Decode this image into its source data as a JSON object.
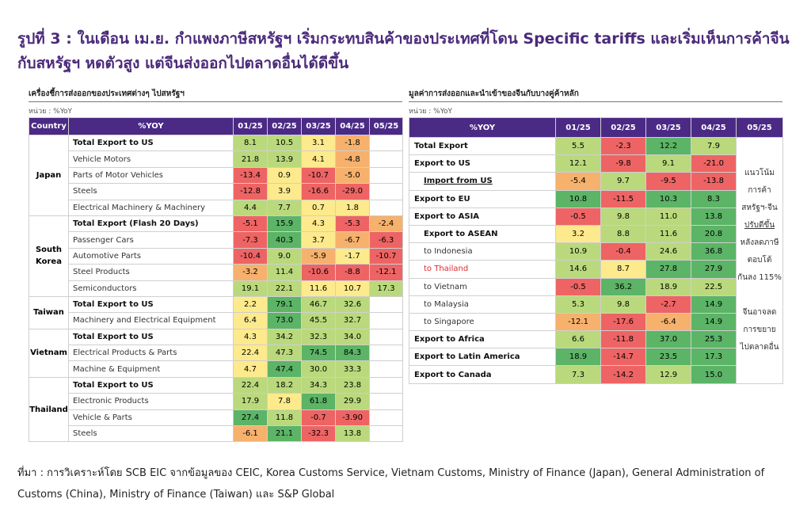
{
  "title": "รูปที่ 3 : ในเดือน เม.ย. กำแพงภาษีสหรัฐฯ เริ่มกระทบสินค้าของประเทศที่โดน Specific tariffs และเริ่มเห็นการค้าจีนกับสหรัฐฯ หดตัวสูง แต่จีนส่งออกไปตลาดอื่นได้ดีขึ้น",
  "palette": {
    "red": "#ee6464",
    "orange": "#f6b16d",
    "yellow": "#fdea8d",
    "lightgreen": "#bad97c",
    "green": "#5cb466",
    "header": "#4b2a85"
  },
  "chart_data": [
    {
      "type": "table",
      "title": "เครื่องชี้การส่งออกของประเทศต่างๆ ไปสหรัฐฯ",
      "unit": "หน่วย : %YoY",
      "columns": [
        "Country",
        "%YOY",
        "01/25",
        "02/25",
        "03/25",
        "04/25",
        "05/25"
      ],
      "groups": [
        {
          "country": "Japan",
          "rows": [
            {
              "item": "Total Export to US",
              "bold": true,
              "values": [
                "8.1",
                "10.5",
                "3.1",
                "-1.8",
                ""
              ],
              "colors": [
                "lightgreen",
                "lightgreen",
                "yellow",
                "orange",
                ""
              ]
            },
            {
              "item": "Vehicle Motors",
              "bold": false,
              "values": [
                "21.8",
                "13.9",
                "4.1",
                "-4.8",
                ""
              ],
              "colors": [
                "lightgreen",
                "lightgreen",
                "yellow",
                "orange",
                ""
              ]
            },
            {
              "item": "Parts of Motor Vehicles",
              "bold": false,
              "values": [
                "-13.4",
                "0.9",
                "-10.7",
                "-5.0",
                ""
              ],
              "colors": [
                "red",
                "yellow",
                "red",
                "orange",
                ""
              ]
            },
            {
              "item": "Steels",
              "bold": false,
              "values": [
                "-12.8",
                "3.9",
                "-16.6",
                "-29.0",
                ""
              ],
              "colors": [
                "red",
                "yellow",
                "red",
                "red",
                ""
              ]
            },
            {
              "item": "Electrical Machinery & Machinery",
              "bold": false,
              "values": [
                "4.4",
                "7.7",
                "0.7",
                "1.8",
                ""
              ],
              "colors": [
                "lightgreen",
                "lightgreen",
                "yellow",
                "yellow",
                ""
              ]
            }
          ]
        },
        {
          "country": "South Korea",
          "rows": [
            {
              "item": "Total Export (Flash 20 Days)",
              "bold": true,
              "values": [
                "-5.1",
                "15.9",
                "4.3",
                "-5.3",
                "-2.4"
              ],
              "colors": [
                "red",
                "green",
                "yellow",
                "red",
                "orange"
              ]
            },
            {
              "item": "Passenger Cars",
              "bold": false,
              "values": [
                "-7.3",
                "40.3",
                "3.7",
                "-6.7",
                "-6.3"
              ],
              "colors": [
                "red",
                "green",
                "yellow",
                "orange",
                "red"
              ]
            },
            {
              "item": "Automotive Parts",
              "bold": false,
              "values": [
                "-10.4",
                "9.0",
                "-5.9",
                "-1.7",
                "-10.7"
              ],
              "colors": [
                "red",
                "lightgreen",
                "orange",
                "yellow",
                "red"
              ]
            },
            {
              "item": "Steel Products",
              "bold": false,
              "values": [
                "-3.2",
                "11.4",
                "-10.6",
                "-8.8",
                "-12.1"
              ],
              "colors": [
                "orange",
                "lightgreen",
                "red",
                "red",
                "red"
              ]
            },
            {
              "item": "Semiconductors",
              "bold": false,
              "values": [
                "19.1",
                "22.1",
                "11.6",
                "10.7",
                "17.3"
              ],
              "colors": [
                "lightgreen",
                "lightgreen",
                "yellow",
                "yellow",
                "lightgreen"
              ]
            }
          ]
        },
        {
          "country": "Taiwan",
          "rows": [
            {
              "item": "Total Export to US",
              "bold": true,
              "values": [
                "2.2",
                "79.1",
                "46.7",
                "32.6",
                ""
              ],
              "colors": [
                "yellow",
                "green",
                "lightgreen",
                "lightgreen",
                ""
              ]
            },
            {
              "item": "Machinery and Electrical Equipment",
              "bold": false,
              "values": [
                "6.4",
                "73.0",
                "45.5",
                "32.7",
                ""
              ],
              "colors": [
                "yellow",
                "green",
                "lightgreen",
                "lightgreen",
                ""
              ]
            }
          ]
        },
        {
          "country": "Vietnam",
          "rows": [
            {
              "item": "Total Export to US",
              "bold": true,
              "values": [
                "4.3",
                "34.2",
                "32.3",
                "34.0",
                ""
              ],
              "colors": [
                "yellow",
                "lightgreen",
                "lightgreen",
                "lightgreen",
                ""
              ]
            },
            {
              "item": "Electrical Products & Parts",
              "bold": false,
              "values": [
                "22.4",
                "47.3",
                "74.5",
                "84.3",
                ""
              ],
              "colors": [
                "yellow",
                "lightgreen",
                "green",
                "green",
                ""
              ]
            },
            {
              "item": "Machine & Equipment",
              "bold": false,
              "values": [
                "4.7",
                "47.4",
                "30.0",
                "33.3",
                ""
              ],
              "colors": [
                "yellow",
                "green",
                "lightgreen",
                "lightgreen",
                ""
              ]
            }
          ]
        },
        {
          "country": "Thailand",
          "rows": [
            {
              "item": "Total Export to US",
              "bold": true,
              "values": [
                "22.4",
                "18.2",
                "34.3",
                "23.8",
                ""
              ],
              "colors": [
                "lightgreen",
                "lightgreen",
                "lightgreen",
                "lightgreen",
                ""
              ]
            },
            {
              "item": "Electronic Products",
              "bold": false,
              "values": [
                "17.9",
                "7.8",
                "61.8",
                "29.9",
                ""
              ],
              "colors": [
                "lightgreen",
                "yellow",
                "green",
                "lightgreen",
                ""
              ]
            },
            {
              "item": "Vehicle & Parts",
              "bold": false,
              "values": [
                "27.4",
                "11.8",
                "-0.7",
                "-3.90",
                ""
              ],
              "colors": [
                "green",
                "lightgreen",
                "red",
                "red",
                ""
              ]
            },
            {
              "item": "Steels",
              "bold": false,
              "values": [
                "-6.1",
                "21.1",
                "-32.3",
                "13.8",
                ""
              ],
              "colors": [
                "orange",
                "green",
                "red",
                "lightgreen",
                ""
              ]
            }
          ]
        }
      ]
    },
    {
      "type": "table",
      "title": "มูลค่าการส่งออกและนำเข้าของจีนกับบางคู่ค้าหลัก",
      "unit": "หน่วย : %YoY",
      "columns": [
        "%YOY",
        "01/25",
        "02/25",
        "03/25",
        "04/25",
        "05/25"
      ],
      "note_lines": [
        "แนวโน้ม",
        "การค้า",
        "สหรัฐฯ-จีน",
        "ปรับดีขึ้น",
        "หลังลดภาษี",
        "ตอบโต้",
        "กันลง 115%",
        "",
        "จีนอาจลด",
        "การขยาย",
        "ไปตลาดอื่น"
      ],
      "rows": [
        {
          "item": "Total Export",
          "style": "bold",
          "values": [
            "5.5",
            "-2.3",
            "12.2",
            "7.9"
          ],
          "colors": [
            "lightgreen",
            "red",
            "green",
            "lightgreen"
          ]
        },
        {
          "item": "Export to US",
          "style": "bold",
          "values": [
            "12.1",
            "-9.8",
            "9.1",
            "-21.0"
          ],
          "colors": [
            "lightgreen",
            "red",
            "lightgreen",
            "red"
          ]
        },
        {
          "item": "Import from US",
          "style": "bold-indent-underline",
          "values": [
            "-5.4",
            "9.7",
            "-9.5",
            "-13.8"
          ],
          "colors": [
            "orange",
            "lightgreen",
            "red",
            "red"
          ]
        },
        {
          "item": "Export to EU",
          "style": "bold",
          "values": [
            "10.8",
            "-11.5",
            "10.3",
            "8.3"
          ],
          "colors": [
            "green",
            "red",
            "green",
            "green"
          ]
        },
        {
          "item": "Export to ASIA",
          "style": "bold",
          "values": [
            "-0.5",
            "9.8",
            "11.0",
            "13.8"
          ],
          "colors": [
            "red",
            "lightgreen",
            "lightgreen",
            "green"
          ]
        },
        {
          "item": "Export to ASEAN",
          "style": "bold-indent",
          "values": [
            "3.2",
            "8.8",
            "11.6",
            "20.8"
          ],
          "colors": [
            "yellow",
            "lightgreen",
            "lightgreen",
            "green"
          ]
        },
        {
          "item": "to Indonesia",
          "style": "indent",
          "values": [
            "10.9",
            "-0.4",
            "24.6",
            "36.8"
          ],
          "colors": [
            "lightgreen",
            "red",
            "lightgreen",
            "green"
          ]
        },
        {
          "item": "to Thailand",
          "style": "indent-red",
          "values": [
            "14.6",
            "8.7",
            "27.8",
            "27.9"
          ],
          "colors": [
            "lightgreen",
            "yellow",
            "green",
            "green"
          ]
        },
        {
          "item": "to Vietnam",
          "style": "indent",
          "values": [
            "-0.5",
            "36.2",
            "18.9",
            "22.5"
          ],
          "colors": [
            "red",
            "green",
            "lightgreen",
            "lightgreen"
          ]
        },
        {
          "item": "to Malaysia",
          "style": "indent",
          "values": [
            "5.3",
            "9.8",
            "-2.7",
            "14.9"
          ],
          "colors": [
            "lightgreen",
            "lightgreen",
            "red",
            "green"
          ]
        },
        {
          "item": "to Singapore",
          "style": "indent",
          "values": [
            "-12.1",
            "-17.6",
            "-6.4",
            "14.9"
          ],
          "colors": [
            "orange",
            "red",
            "orange",
            "green"
          ]
        },
        {
          "item": "Export to Africa",
          "style": "bold",
          "values": [
            "6.6",
            "-11.8",
            "37.0",
            "25.3"
          ],
          "colors": [
            "lightgreen",
            "red",
            "green",
            "green"
          ]
        },
        {
          "item": "Export to Latin America",
          "style": "bold",
          "values": [
            "18.9",
            "-14.7",
            "23.5",
            "17.3"
          ],
          "colors": [
            "green",
            "red",
            "green",
            "green"
          ]
        },
        {
          "item": "Export to Canada",
          "style": "bold",
          "values": [
            "7.3",
            "-14.2",
            "12.9",
            "15.0"
          ],
          "colors": [
            "lightgreen",
            "red",
            "lightgreen",
            "green"
          ]
        }
      ]
    }
  ],
  "source": "ที่มา : การวิเคราะห์โดย SCB EIC จากข้อมูลของ CEIC, Korea Customs Service, Vietnam Customs, Ministry of Finance (Japan), General Administration of Customs (China), Ministry of Finance (Taiwan) และ S&P Global"
}
